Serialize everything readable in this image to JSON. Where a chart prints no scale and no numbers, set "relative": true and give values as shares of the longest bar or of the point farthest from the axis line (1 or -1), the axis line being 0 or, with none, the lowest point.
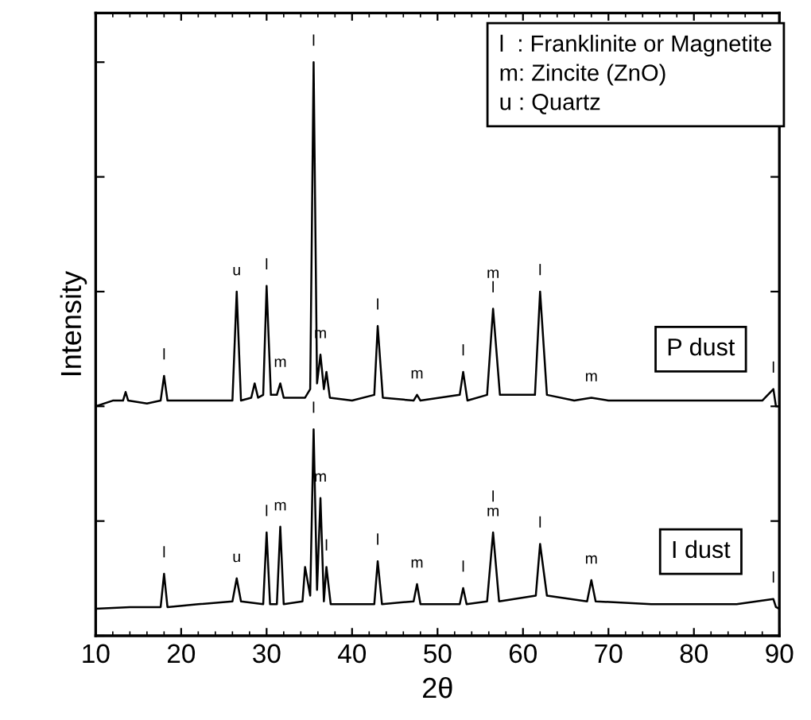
{
  "chart_data": {
    "type": "line",
    "relative": true,
    "xlabel": "2θ",
    "ylabel": "Intensity",
    "xlim": [
      10,
      90
    ],
    "xticks": [
      10,
      20,
      30,
      40,
      50,
      60,
      70,
      80,
      90
    ],
    "tick_labels": "x",
    "grid": false,
    "legend": false,
    "marker": "none",
    "line_style": "solid",
    "series": [
      {
        "name": "P dust",
        "color": "#000000",
        "x": [
          10,
          12,
          13.2,
          13.5,
          13.8,
          16,
          17.6,
          18,
          18.4,
          22,
          26.0,
          26.5,
          27.0,
          28.2,
          28.6,
          29.0,
          29.6,
          30.0,
          30.5,
          31.2,
          31.6,
          32.0,
          34.5,
          35.1,
          35.5,
          35.9,
          36.3,
          36.7,
          37.0,
          37.4,
          40,
          42.6,
          43.0,
          43.6,
          47.2,
          47.6,
          48,
          52.6,
          53.0,
          53.5,
          55.8,
          56.5,
          57.3,
          61.4,
          62.0,
          62.8,
          66,
          68,
          70,
          80,
          88,
          89.3,
          89.6,
          90
        ],
        "values": [
          0.4,
          0.41,
          0.41,
          0.425,
          0.41,
          0.405,
          0.41,
          0.453,
          0.41,
          0.41,
          0.41,
          0.6,
          0.41,
          0.415,
          0.44,
          0.415,
          0.42,
          0.61,
          0.42,
          0.42,
          0.44,
          0.415,
          0.415,
          0.43,
          1.0,
          0.44,
          0.49,
          0.43,
          0.46,
          0.415,
          0.41,
          0.42,
          0.54,
          0.415,
          0.41,
          0.42,
          0.41,
          0.42,
          0.46,
          0.41,
          0.42,
          0.57,
          0.42,
          0.42,
          0.6,
          0.42,
          0.41,
          0.415,
          0.41,
          0.41,
          0.41,
          0.43,
          0.4,
          0.4
        ]
      },
      {
        "name": "I dust",
        "color": "#000000",
        "x": [
          10,
          14,
          17.6,
          18,
          18.4,
          22,
          26.0,
          26.5,
          27.0,
          29.6,
          30.0,
          30.4,
          31.2,
          31.6,
          32.0,
          34.2,
          34.5,
          35.1,
          35.5,
          35.9,
          36.3,
          36.7,
          37.0,
          37.5,
          40,
          42.6,
          43.0,
          43.5,
          47.2,
          47.6,
          48,
          52.6,
          53.0,
          53.4,
          55.8,
          56.5,
          57.2,
          61.5,
          62.0,
          62.8,
          67.5,
          68,
          68.5,
          75,
          85,
          89.3,
          89.6,
          90
        ],
        "values": [
          0.047,
          0.05,
          0.05,
          0.108,
          0.05,
          0.055,
          0.06,
          0.1,
          0.06,
          0.055,
          0.18,
          0.055,
          0.055,
          0.19,
          0.055,
          0.06,
          0.12,
          0.07,
          0.36,
          0.08,
          0.24,
          0.06,
          0.12,
          0.055,
          0.055,
          0.055,
          0.13,
          0.055,
          0.06,
          0.09,
          0.055,
          0.055,
          0.083,
          0.055,
          0.06,
          0.18,
          0.06,
          0.07,
          0.16,
          0.07,
          0.06,
          0.097,
          0.06,
          0.055,
          0.055,
          0.064,
          0.05,
          0.047
        ]
      }
    ],
    "annotations": [
      "l  : Franklinite or Magnetite\nm: Zincite (ZnO)\nu : Quartz",
      {
        "text": "l",
        "x": 18,
        "y": 0.453
      },
      {
        "text": "u",
        "x": 26.5,
        "y": 0.6
      },
      {
        "text": "l",
        "x": 30.0,
        "y": 0.61
      },
      {
        "text": "m",
        "x": 31.6,
        "y": 0.44
      },
      {
        "text": "l",
        "x": 35.5,
        "y": 1.0
      },
      {
        "text": "m",
        "x": 36.3,
        "y": 0.49
      },
      {
        "text": "l",
        "x": 43.0,
        "y": 0.54
      },
      {
        "text": "m",
        "x": 47.6,
        "y": 0.42
      },
      {
        "text": "l",
        "x": 53.0,
        "y": 0.46
      },
      {
        "text": "m\nl",
        "x": 56.5,
        "y": 0.57
      },
      {
        "text": "l",
        "x": 62.0,
        "y": 0.6
      },
      {
        "text": "m",
        "x": 68,
        "y": 0.415
      },
      {
        "text": "l",
        "x": 89.3,
        "y": 0.43
      },
      {
        "text": "l",
        "x": 18,
        "y": 0.108
      },
      {
        "text": "u",
        "x": 26.5,
        "y": 0.1
      },
      {
        "text": "l",
        "x": 30.0,
        "y": 0.18
      },
      {
        "text": "m",
        "x": 31.6,
        "y": 0.19
      },
      {
        "text": "l",
        "x": 35.5,
        "y": 0.36
      },
      {
        "text": "m",
        "x": 36.3,
        "y": 0.24
      },
      {
        "text": "l",
        "x": 37.0,
        "y": 0.12
      },
      {
        "text": "l",
        "x": 43.0,
        "y": 0.13
      },
      {
        "text": "m",
        "x": 47.6,
        "y": 0.09
      },
      {
        "text": "l",
        "x": 53.0,
        "y": 0.083
      },
      {
        "text": "l\nm",
        "x": 56.5,
        "y": 0.18
      },
      {
        "text": "l",
        "x": 62.0,
        "y": 0.16
      },
      {
        "text": "m",
        "x": 68,
        "y": 0.097
      },
      {
        "text": "l",
        "x": 89.3,
        "y": 0.064
      }
    ]
  }
}
